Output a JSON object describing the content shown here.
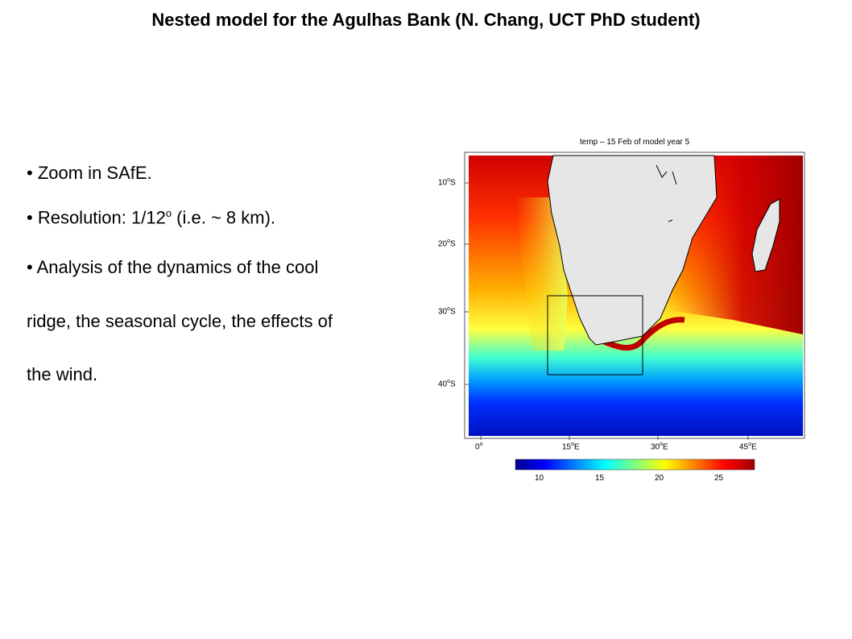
{
  "slide": {
    "title": "Nested model for the Agulhas Bank (N. Chang, UCT PhD student)",
    "bullets": [
      {
        "bullet": "•",
        "text": "Zoom in SAfE."
      },
      {
        "bullet": "•",
        "prefix": "Resolution: 1/12",
        "sup": "o",
        "suffix": " (i.e. ~ 8 km)."
      },
      {
        "bullet": "•",
        "lines": [
          "Analysis of the dynamics of the cool",
          "ridge, the seasonal cycle, the effects of",
          "the wind."
        ]
      }
    ]
  },
  "figure": {
    "title": "temp – 15 Feb of model year 5",
    "lat_ticks": [
      {
        "num": "10",
        "deg": "o",
        "hem": "S"
      },
      {
        "num": "20",
        "deg": "o",
        "hem": "S"
      },
      {
        "num": "30",
        "deg": "o",
        "hem": "S"
      },
      {
        "num": "40",
        "deg": "o",
        "hem": "S"
      }
    ],
    "lon_ticks": [
      {
        "num": "0",
        "deg": "o",
        "hem": ""
      },
      {
        "num": "15",
        "deg": "o",
        "hem": "E"
      },
      {
        "num": "30",
        "deg": "o",
        "hem": "E"
      },
      {
        "num": "45",
        "deg": "o",
        "hem": "E"
      }
    ],
    "colorbar": {
      "ticks": [
        "10",
        "15",
        "20",
        "25"
      ],
      "colors": [
        "#00008f",
        "#0000ff",
        "#0080ff",
        "#00ffff",
        "#80ff80",
        "#ffff00",
        "#ff8000",
        "#ff0000",
        "#a00000"
      ]
    }
  }
}
